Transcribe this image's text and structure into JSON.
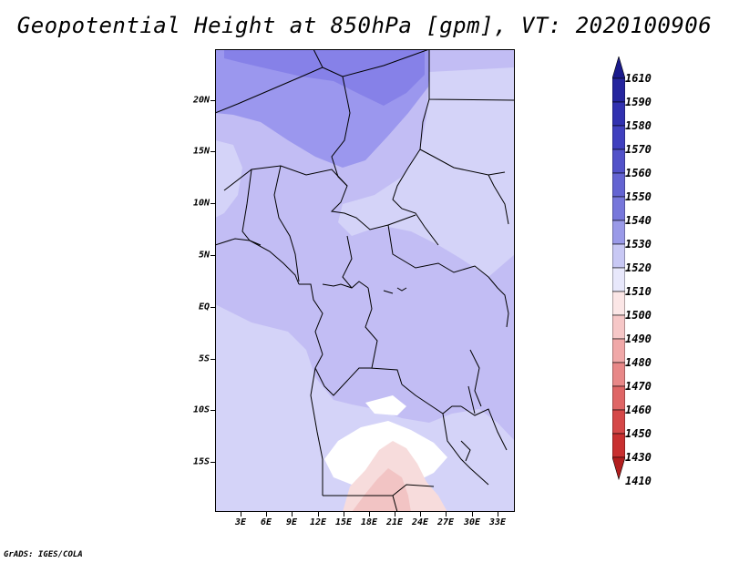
{
  "title": "Geopotential Height at 850hPa [gpm], VT: 2020100906",
  "map": {
    "latitude_labels": [
      "20N",
      "15N",
      "10N",
      "5N",
      "EQ",
      "5S",
      "10S",
      "15S"
    ],
    "longitude_labels": [
      "3E",
      "6E",
      "9E",
      "12E",
      "15E",
      "18E",
      "21E",
      "24E",
      "27E",
      "30E",
      "33E"
    ],
    "colors": {
      "background": "#c2bdf4",
      "deep": "#9b97ee",
      "deepest": "#8681e8",
      "light": "#d4d3f8",
      "white": "#ffffff",
      "pink_light": "#f7dcdc",
      "pink": "#f2c4c4",
      "border": "#000000"
    }
  },
  "colorbar": {
    "labels": [
      "1610",
      "1590",
      "1580",
      "1570",
      "1560",
      "1550",
      "1540",
      "1530",
      "1520",
      "1510",
      "1500",
      "1490",
      "1480",
      "1470",
      "1460",
      "1450",
      "1430",
      "1410"
    ],
    "colors": [
      "#1a1a8c",
      "#25259e",
      "#3131b0",
      "#4040bf",
      "#5252c9",
      "#6464d2",
      "#7777db",
      "#9a9ae8",
      "#c8c8f4",
      "#e8e8fb",
      "#fbe6e6",
      "#f6c7c7",
      "#f0a8a8",
      "#e88888",
      "#df6666",
      "#d54848",
      "#c83030",
      "#b21e1e"
    ]
  },
  "credit": "GrADS: IGES/COLA"
}
